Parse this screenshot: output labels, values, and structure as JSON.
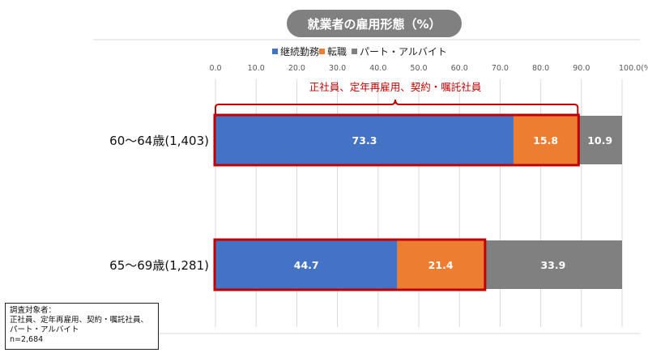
{
  "chart_data": {
    "type": "bar",
    "orientation": "horizontal",
    "stacked": true,
    "title": "就業者の雇用形態（%）",
    "categories": [
      "60～64歳(1,403)",
      "65～69歳(1,281)"
    ],
    "series": [
      {
        "name": "継続勤務",
        "color": "#4472C4",
        "values": [
          73.3,
          44.7
        ]
      },
      {
        "name": "転職",
        "color": "#ED7D31",
        "values": [
          15.8,
          21.4
        ]
      },
      {
        "name": "パート・アルバイト",
        "color": "#808080",
        "values": [
          10.9,
          33.9
        ]
      }
    ],
    "xlim": [
      0,
      100
    ],
    "ticks": [
      "0.0",
      "10.0",
      "20.0",
      "30.0",
      "40.0",
      "50.0",
      "60.0",
      "70.0",
      "80.0",
      "90.0",
      "100.0(%)"
    ],
    "tick_values": [
      0,
      10,
      20,
      30,
      40,
      50,
      60,
      70,
      80,
      90,
      100
    ],
    "legend_position": "top",
    "grid": true,
    "annotation": "正社員、定年再雇用、契約・嘱託社員",
    "highlight_color": "#C00000"
  },
  "note": {
    "lines": [
      "調査対象者：",
      "正社員、定年再雇用、契約・嘱託社員、",
      "パート・アルバイト",
      "n=2,684"
    ]
  }
}
